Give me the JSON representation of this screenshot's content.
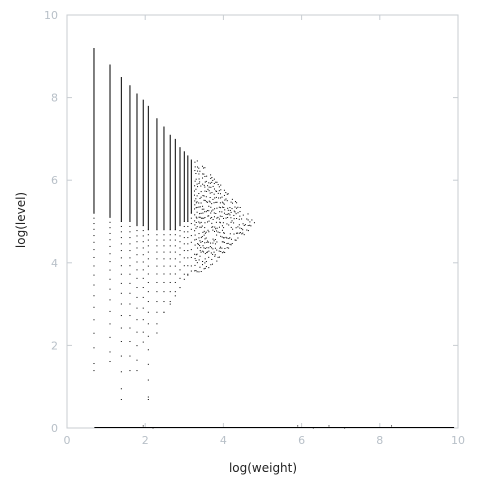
{
  "chart_data": {
    "type": "scatter",
    "title": "",
    "xlabel": "log(weight)",
    "ylabel": "log(level)",
    "xlim": [
      0,
      10
    ],
    "ylim": [
      0,
      10
    ],
    "x_ticks": [
      0,
      2,
      4,
      6,
      8,
      10
    ],
    "y_ticks": [
      0,
      2,
      4,
      6,
      8,
      10
    ],
    "grid": false,
    "point_color": "#000000",
    "axis_color": "#c8cdd2",
    "tick_label_color": "#b8c0c8",
    "columns": [
      {
        "x": 0.69,
        "ymin": 1.39,
        "ymax": 9.2,
        "solid_from": 5.2
      },
      {
        "x": 1.1,
        "ymin": 1.61,
        "ymax": 8.8,
        "solid_from": 5.1
      },
      {
        "x": 1.39,
        "ymin": 0.69,
        "ymax": 8.5,
        "solid_from": 5.0
      },
      {
        "x": 1.61,
        "ymin": 1.39,
        "ymax": 8.3,
        "solid_from": 5.0
      },
      {
        "x": 1.79,
        "ymin": 1.39,
        "ymax": 8.1,
        "solid_from": 4.9
      },
      {
        "x": 1.95,
        "ymin": 2.08,
        "ymax": 7.95,
        "solid_from": 4.9
      },
      {
        "x": 2.08,
        "ymin": 0.69,
        "ymax": 7.8,
        "solid_from": 4.8
      },
      {
        "x": 2.3,
        "ymin": 2.3,
        "ymax": 7.5,
        "solid_from": 4.8
      },
      {
        "x": 2.48,
        "ymin": 2.8,
        "ymax": 7.3,
        "solid_from": 4.8
      },
      {
        "x": 2.64,
        "ymin": 3.0,
        "ymax": 7.1,
        "solid_from": 4.8
      },
      {
        "x": 2.77,
        "ymin": 3.2,
        "ymax": 7.0,
        "solid_from": 4.8
      },
      {
        "x": 2.89,
        "ymin": 3.4,
        "ymax": 6.8,
        "solid_from": 4.9
      },
      {
        "x": 3.0,
        "ymin": 3.6,
        "ymax": 6.7,
        "solid_from": 5.0
      },
      {
        "x": 3.09,
        "ymin": 3.7,
        "ymax": 6.6,
        "solid_from": 5.0
      },
      {
        "x": 3.18,
        "ymin": 3.8,
        "ymax": 6.5,
        "solid_from": 5.2
      }
    ],
    "cloud": [
      {
        "x": 3.3,
        "ymin": 3.8,
        "ymax": 6.5
      },
      {
        "x": 3.4,
        "ymin": 3.8,
        "ymax": 6.45
      },
      {
        "x": 3.5,
        "ymin": 3.85,
        "ymax": 6.35
      },
      {
        "x": 3.6,
        "ymin": 3.9,
        "ymax": 6.25
      },
      {
        "x": 3.7,
        "ymin": 3.95,
        "ymax": 6.15
      },
      {
        "x": 3.8,
        "ymin": 4.05,
        "ymax": 6.05
      },
      {
        "x": 3.9,
        "ymin": 4.15,
        "ymax": 5.95
      },
      {
        "x": 4.0,
        "ymin": 4.25,
        "ymax": 5.85
      },
      {
        "x": 4.1,
        "ymin": 4.35,
        "ymax": 5.75
      },
      {
        "x": 4.2,
        "ymin": 4.45,
        "ymax": 5.6
      },
      {
        "x": 4.3,
        "ymin": 4.55,
        "ymax": 5.5
      },
      {
        "x": 4.4,
        "ymin": 4.6,
        "ymax": 5.4
      },
      {
        "x": 4.5,
        "ymin": 4.7,
        "ymax": 5.3
      },
      {
        "x": 4.6,
        "ymin": 4.8,
        "ymax": 5.2
      },
      {
        "x": 4.7,
        "ymin": 4.9,
        "ymax": 5.1
      },
      {
        "x": 4.8,
        "ymin": 4.97,
        "ymax": 5.03
      }
    ],
    "baseline": {
      "y": 0.0,
      "xmin": 0.7,
      "xmax": 9.9
    },
    "baseline_sparse_points": [
      {
        "x": 1.95,
        "y": 0.05
      },
      {
        "x": 2.2,
        "y": 0.0
      },
      {
        "x": 5.9,
        "y": 0.05
      },
      {
        "x": 6.3,
        "y": 0.0
      },
      {
        "x": 6.7,
        "y": 0.05
      },
      {
        "x": 7.1,
        "y": 0.0
      },
      {
        "x": 8.3,
        "y": 0.05
      }
    ]
  }
}
